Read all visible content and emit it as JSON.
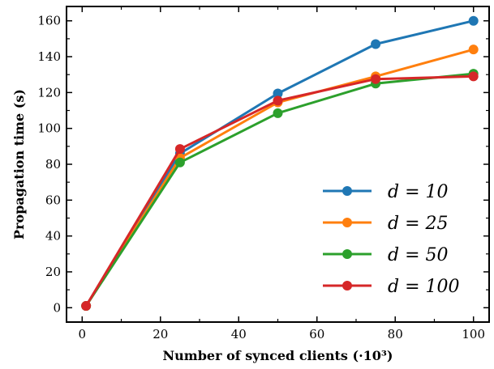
{
  "chart_data": {
    "type": "line",
    "xlabel": "Number of synced clients (·10³)",
    "ylabel": "Propagation time (s)",
    "xlim": [
      -4,
      104
    ],
    "ylim": [
      -8,
      168
    ],
    "xticks": [
      "0",
      "20",
      "40",
      "60",
      "80",
      "100"
    ],
    "yticks": [
      "0",
      "20",
      "40",
      "60",
      "80",
      "100",
      "120",
      "140",
      "160"
    ],
    "grid": false,
    "legend_position": "lower-right",
    "x": [
      1,
      25,
      50,
      75,
      100
    ],
    "series": [
      {
        "name": "d = 10",
        "color": "#1f77b4",
        "values": [
          1,
          86,
          119.5,
          147,
          160
        ]
      },
      {
        "name": "d = 25",
        "color": "#ff7f0e",
        "values": [
          1,
          83.5,
          114.5,
          129,
          144
        ]
      },
      {
        "name": "d = 50",
        "color": "#2ca02c",
        "values": [
          1,
          81,
          108.5,
          125,
          130.5
        ]
      },
      {
        "name": "d = 100",
        "color": "#d62728",
        "values": [
          1,
          88.5,
          115.5,
          127.5,
          129
        ]
      }
    ]
  }
}
